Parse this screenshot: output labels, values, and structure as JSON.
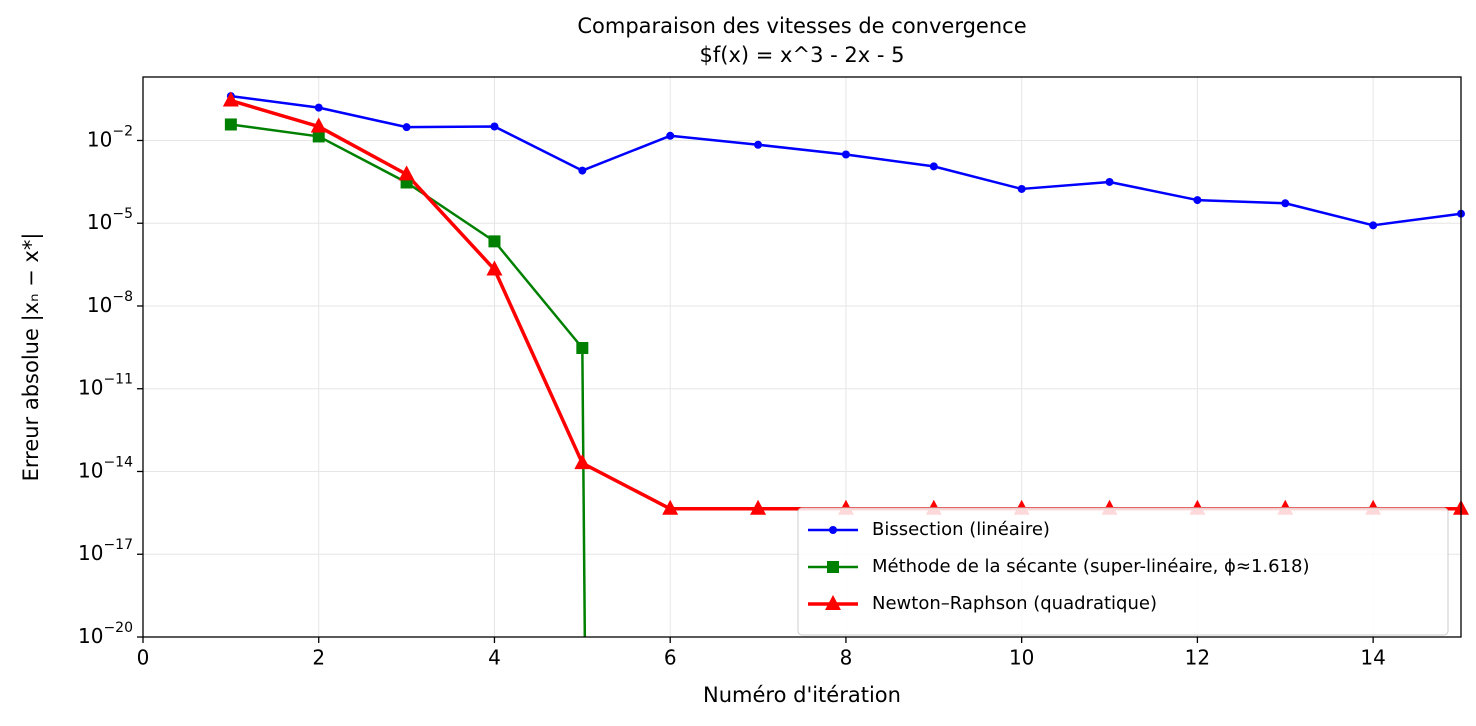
{
  "chart_data": {
    "type": "line",
    "title": "Comparaison des vitesses de convergence",
    "subtitle": "$f(x) = x^3 - 2x - 5",
    "x_label": "Numéro d'itération",
    "y_label": "Erreur absolue |xₙ − x*|",
    "x": [
      1,
      2,
      3,
      4,
      5,
      6,
      7,
      8,
      9,
      10,
      11,
      12,
      13,
      14,
      15
    ],
    "series": [
      {
        "name": "Bissection (linéaire)",
        "color": "#0000ff",
        "marker": "circle",
        "values": [
          0.405,
          0.155,
          0.0304,
          0.0321,
          0.00081,
          0.0148,
          0.007,
          0.0031,
          0.00115,
          0.000175,
          0.000313,
          6.91e-05,
          5.29e-05,
          8.4e-06,
          2.21e-05
        ]
      },
      {
        "name": "Méthode de la sécante (super-linéaire, ϕ≈1.618)",
        "color": "#008000",
        "marker": "square",
        "values": [
          0.038,
          0.014,
          0.0003,
          2.2e-06,
          3e-10,
          0,
          null,
          null,
          null,
          null,
          null,
          null,
          null,
          null,
          null
        ]
      },
      {
        "name": "Newton–Raphson (quadratique)",
        "color": "#ff0000",
        "marker": "triangle",
        "values": [
          0.28,
          0.032,
          0.00059,
          2.1e-07,
          2e-14,
          4.44e-16,
          4.44e-16,
          4.44e-16,
          4.44e-16,
          4.44e-16,
          4.44e-16,
          4.44e-16,
          4.44e-16,
          4.44e-16,
          4.44e-16
        ]
      }
    ],
    "xlim": [
      0,
      15
    ],
    "xticks": [
      0,
      2,
      4,
      6,
      8,
      10,
      12,
      14
    ],
    "ylim": [
      1e-20,
      2
    ],
    "y_scale": "log",
    "yticks": [
      {
        "value": 0.01,
        "label": "10−2"
      },
      {
        "value": 1e-05,
        "label": "10−5"
      },
      {
        "value": 1e-08,
        "label": "10−8"
      },
      {
        "value": 1e-11,
        "label": "10−11"
      },
      {
        "value": 1e-14,
        "label": "10−14"
      },
      {
        "value": 1e-17,
        "label": "10−17"
      },
      {
        "value": 1e-20,
        "label": "10−20"
      }
    ],
    "grid": true,
    "legend_position": "lower right"
  }
}
